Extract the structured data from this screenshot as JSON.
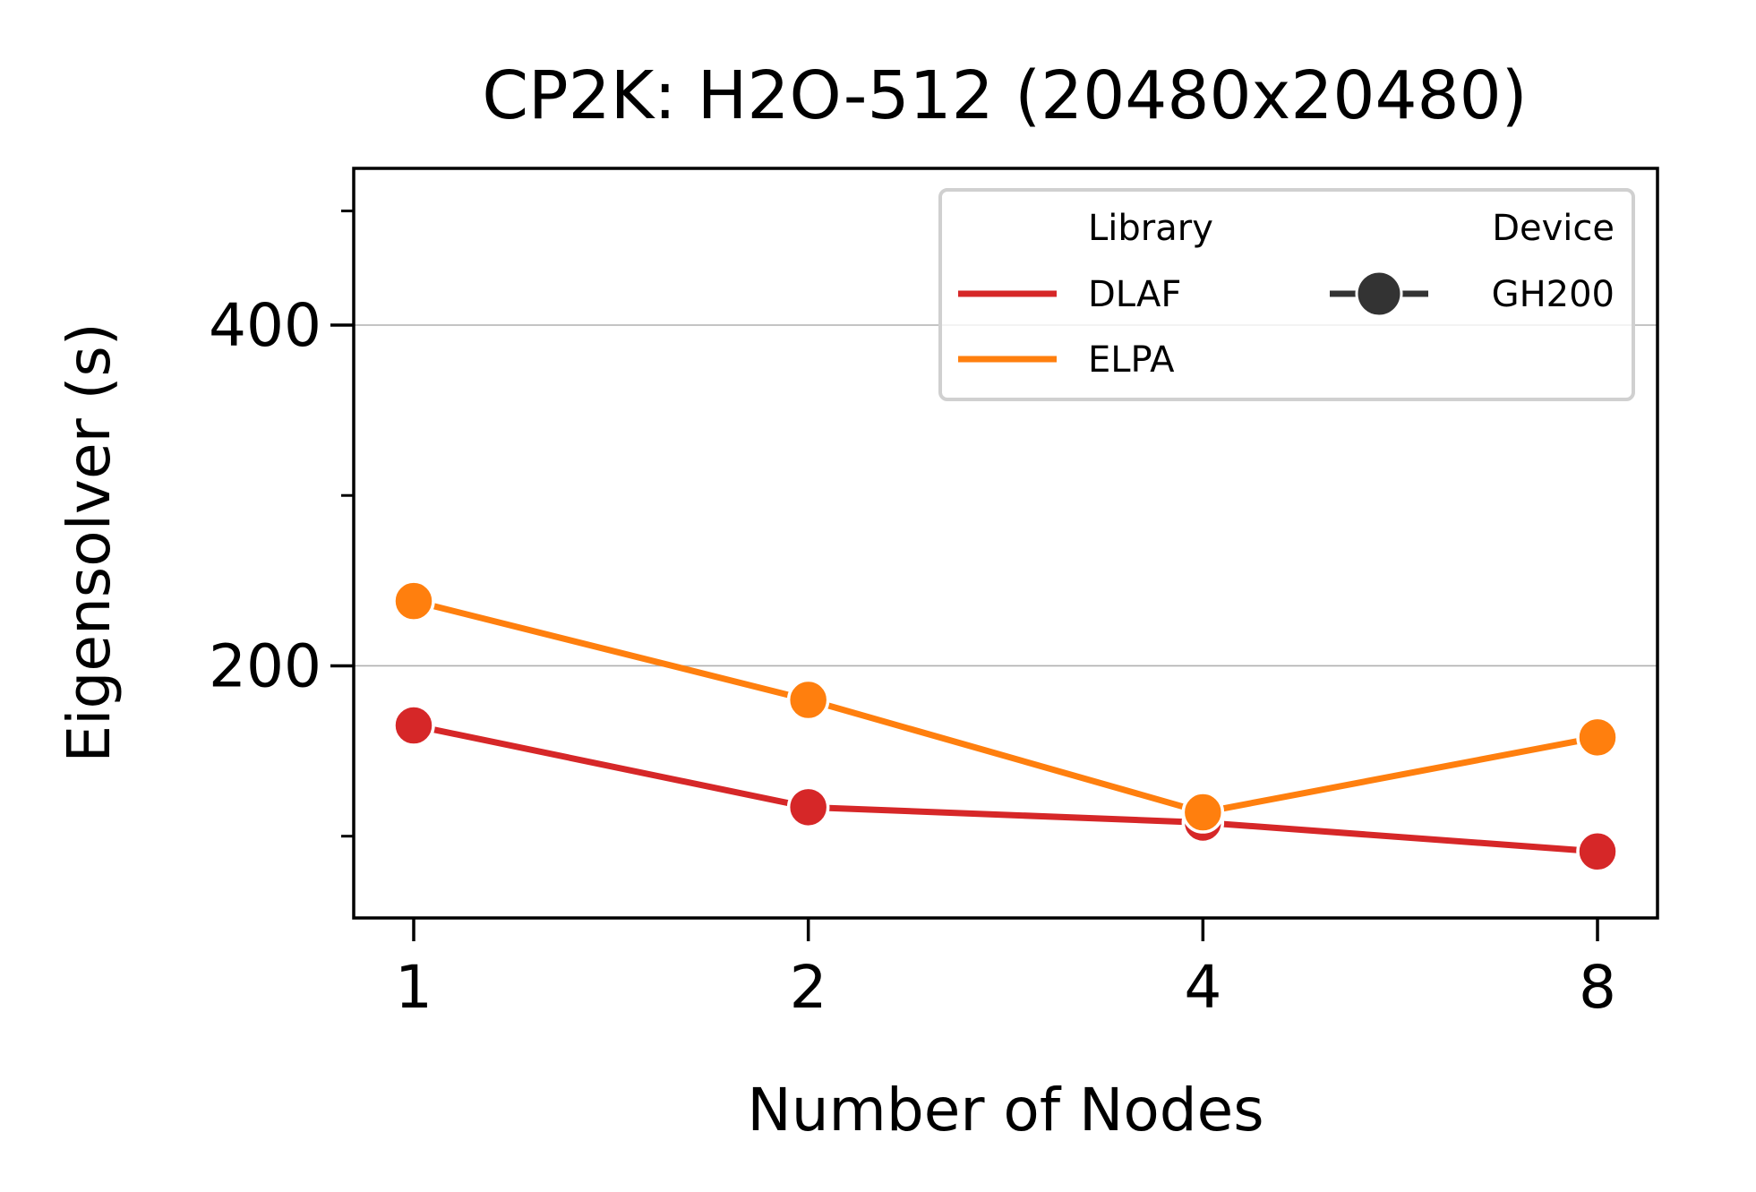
{
  "chart_data": {
    "type": "line",
    "title": "CP2K: H2O-512 (20480x20480)",
    "xlabel": "Number of Nodes",
    "ylabel": "Eigensolver (s)",
    "categories": [
      "1",
      "2",
      "4",
      "8"
    ],
    "x": [
      1,
      2,
      4,
      8
    ],
    "x_scale": "log2",
    "ylim": [
      52,
      492
    ],
    "y_ticks_major": [
      200,
      400
    ],
    "y_ticks_minor": [
      100,
      300,
      467
    ],
    "grid": "y-major",
    "legend_placement": "top-right",
    "legend": {
      "hue_title": "Library",
      "style_title": "Device",
      "style_entries": [
        "GH200"
      ]
    },
    "series": [
      {
        "name": "DLAF",
        "device": "GH200",
        "color": "#d62728",
        "values": [
          165,
          117,
          108,
          91
        ]
      },
      {
        "name": "ELPA",
        "device": "GH200",
        "color": "#ff7f0e",
        "values": [
          238,
          180,
          114,
          158
        ]
      }
    ]
  }
}
